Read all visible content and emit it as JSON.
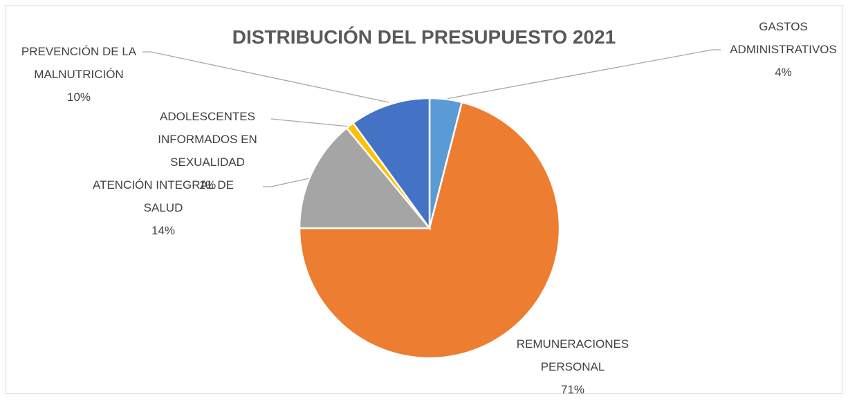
{
  "chart_data": {
    "type": "pie",
    "title": "DISTRIBUCIÓN DEL PRESUPUESTO 2021",
    "categories": [
      "GASTOS ADMINISTRATIVOS",
      "REMUNERACIONES PERSONAL",
      "ATENCIÓN INTEGRAL DE SALUD",
      "ADOLESCENTES INFORMADOS EN SEXUALIDAD",
      "PREVENCIÓN DE LA MALNUTRICIÓN"
    ],
    "values": [
      4,
      71,
      14,
      1,
      10
    ],
    "value_labels": [
      "4%",
      "71%",
      "14%",
      "1%",
      "10%"
    ],
    "colors": [
      "#5b9bd5",
      "#ed7d31",
      "#a5a5a5",
      "#ffc000",
      "#4472c4"
    ]
  }
}
